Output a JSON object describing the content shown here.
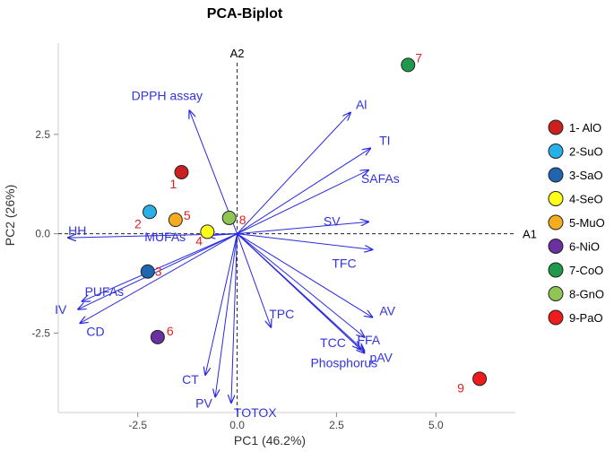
{
  "chart_data": {
    "type": "scatter",
    "subtype": "biplot",
    "title": "PCA-Biplot",
    "xlabel": "PC1 (46.2%)",
    "ylabel": "PC2 (26%)",
    "xlim": [
      -4.5,
      7.0
    ],
    "ylim": [
      -4.5,
      4.8
    ],
    "x_ticks": [
      "-2.5",
      "0.0",
      "2.5",
      "5.0"
    ],
    "x_tick_values": [
      -2.5,
      0,
      2.5,
      5.0
    ],
    "y_ticks": [
      "2.5",
      "0.0",
      "-2.5"
    ],
    "y_tick_values": [
      2.5,
      0,
      -2.5
    ],
    "grid": false,
    "reference_lines": [
      {
        "label": "A1",
        "orientation": "horizontal",
        "at": 0
      },
      {
        "label": "A2",
        "orientation": "vertical",
        "at": 0
      }
    ],
    "legend_position": "right",
    "samples": [
      {
        "id": "1",
        "label": "1",
        "legend": "1- AlO",
        "color": "#cc1f1f",
        "x": -1.4,
        "y": 1.55
      },
      {
        "id": "2",
        "label": "2",
        "legend": "2-SuO",
        "color": "#2ab0e8",
        "x": -2.2,
        "y": 0.55
      },
      {
        "id": "3",
        "label": "3",
        "legend": "3-SaO",
        "color": "#1f65b0",
        "x": -2.25,
        "y": -0.95
      },
      {
        "id": "4",
        "label": "4",
        "legend": "4-SeO",
        "color": "#ffff1a",
        "x": -0.75,
        "y": 0.05
      },
      {
        "id": "5",
        "label": "5",
        "legend": "5-MuO",
        "color": "#f5ad1e",
        "x": -1.55,
        "y": 0.35
      },
      {
        "id": "6",
        "label": "6",
        "legend": "6-NiO",
        "color": "#6a2fa0",
        "x": -2.0,
        "y": -2.6
      },
      {
        "id": "7",
        "label": "7",
        "legend": "7-CoO",
        "color": "#1f9a4b",
        "x": 4.3,
        "y": 4.25
      },
      {
        "id": "8",
        "label": "8",
        "legend": "8-GnO",
        "color": "#8fc653",
        "x": -0.2,
        "y": 0.4
      },
      {
        "id": "9",
        "label": "9",
        "legend": "9-PaO",
        "color": "#ee1c1c",
        "x": 6.1,
        "y": -3.65
      }
    ],
    "loadings": [
      {
        "name": "DPPH assay",
        "x": -1.2,
        "y": 3.1
      },
      {
        "name": "Al",
        "x": 2.85,
        "y": 3.05
      },
      {
        "name": "TI",
        "x": 3.35,
        "y": 2.15
      },
      {
        "name": "SAFAs",
        "x": 3.3,
        "y": 1.6
      },
      {
        "name": "SV",
        "x": 3.3,
        "y": 0.3
      },
      {
        "name": "TFC",
        "x": 3.4,
        "y": -0.4
      },
      {
        "name": "AV",
        "x": 3.4,
        "y": -2.1
      },
      {
        "name": "FFA",
        "x": 3.2,
        "y": -2.6
      },
      {
        "name": "pAV",
        "x": 3.2,
        "y": -3.0
      },
      {
        "name": "TCC",
        "x": 3.1,
        "y": -2.9
      },
      {
        "name": "Phosphorus",
        "x": 3.2,
        "y": -2.95
      },
      {
        "name": "TPC",
        "x": 0.85,
        "y": -2.35
      },
      {
        "name": "TOTOX",
        "x": -0.15,
        "y": -4.25
      },
      {
        "name": "PV",
        "x": -0.55,
        "y": -4.1
      },
      {
        "name": "CT",
        "x": -0.8,
        "y": -3.55
      },
      {
        "name": "CD",
        "x": -3.95,
        "y": -2.25
      },
      {
        "name": "IV",
        "x": -4.0,
        "y": -1.9
      },
      {
        "name": "PUFAs",
        "x": -3.9,
        "y": -1.7
      },
      {
        "name": "MUFAs",
        "x": -0.75,
        "y": -0.05
      },
      {
        "name": "HH",
        "x": -4.25,
        "y": -0.1
      }
    ]
  }
}
